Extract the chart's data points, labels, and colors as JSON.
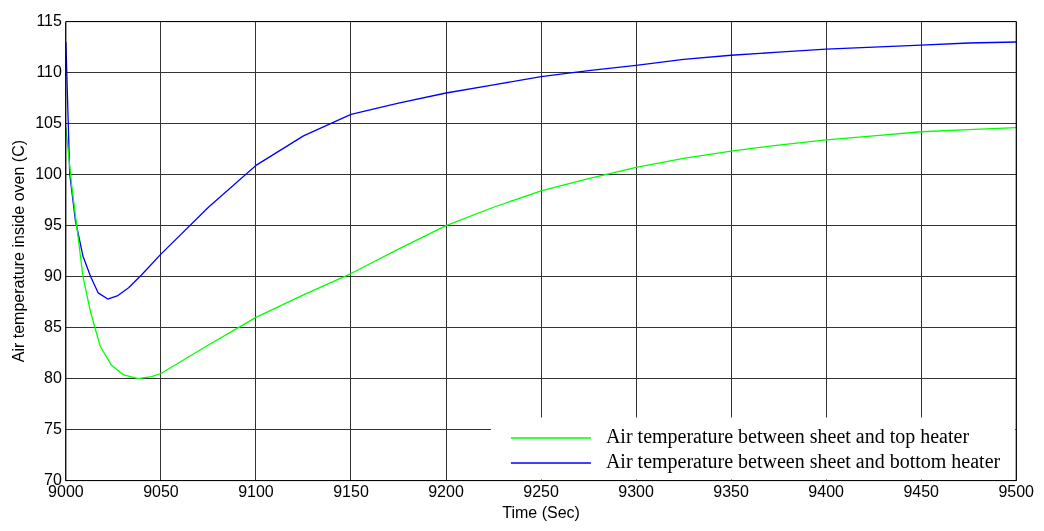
{
  "chart_data": {
    "type": "line",
    "xlabel": "Time (Sec)",
    "ylabel": "Air temperature inside oven (C)",
    "xlim": [
      9000,
      9500
    ],
    "xticks": [
      9000,
      9050,
      9100,
      9150,
      9200,
      9250,
      9300,
      9350,
      9400,
      9450,
      9500
    ],
    "ylim": [
      70,
      115
    ],
    "yticks": [
      70,
      75,
      80,
      85,
      90,
      95,
      100,
      105,
      110,
      115
    ],
    "grid": true,
    "line_style": "solid",
    "marker": "none",
    "legend": "bottom right",
    "series": [
      {
        "name": "Air temperature between sheet and top heater",
        "color": "#00ff00",
        "x": [
          9000,
          9003,
          9006,
          9009,
          9013,
          9018,
          9024,
          9030,
          9038,
          9045,
          9050,
          9075,
          9100,
          9125,
          9150,
          9175,
          9200,
          9225,
          9250,
          9275,
          9300,
          9325,
          9350,
          9375,
          9400,
          9425,
          9450,
          9475,
          9500
        ],
        "values": [
          104.6,
          99,
          94.5,
          90,
          86.5,
          83.2,
          81.3,
          80.4,
          80,
          80.2,
          80.5,
          83.3,
          86,
          88.2,
          90.3,
          92.7,
          95,
          96.8,
          98.4,
          99.6,
          100.7,
          101.6,
          102.3,
          102.9,
          103.4,
          103.8,
          104.2,
          104.4,
          104.6
        ]
      },
      {
        "name": "Air temperature between sheet and bottom heater",
        "color": "#0000ff",
        "x": [
          9000,
          9002,
          9005,
          9009,
          9013,
          9017,
          9022,
          9027,
          9033,
          9040,
          9050,
          9075,
          9100,
          9125,
          9150,
          9175,
          9200,
          9225,
          9250,
          9275,
          9300,
          9325,
          9350,
          9375,
          9400,
          9425,
          9450,
          9475,
          9500
        ],
        "values": [
          113,
          100.1,
          95.5,
          92,
          90,
          88.4,
          87.8,
          88.1,
          88.9,
          90.2,
          92.2,
          96.8,
          100.9,
          103.8,
          105.9,
          107,
          108,
          108.8,
          109.6,
          110.2,
          110.7,
          111.3,
          111.7,
          112,
          112.3,
          112.5,
          112.7,
          112.9,
          113
        ]
      }
    ]
  }
}
